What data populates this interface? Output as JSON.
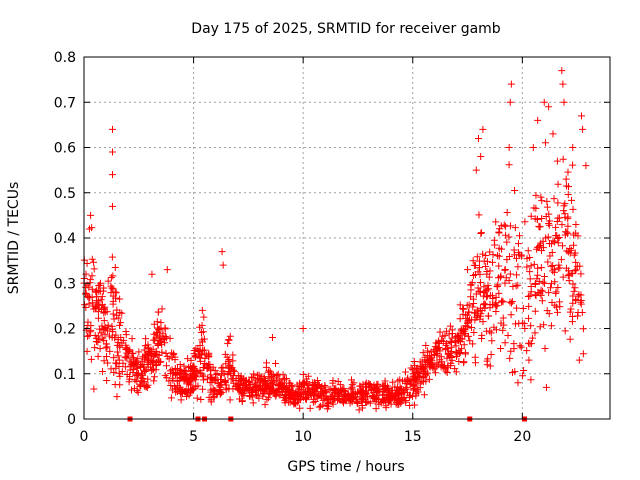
{
  "chart_data": {
    "type": "scatter",
    "title": "Day 175 of 2025, SRMTID for receiver gamb",
    "xlabel": "GPS time / hours",
    "ylabel": "SRMTID / TECUs",
    "xlim": [
      0,
      24
    ],
    "ylim": [
      0,
      0.8
    ],
    "x_ticks": [
      0,
      5,
      10,
      15,
      20
    ],
    "x_tick_labels": [
      "0",
      "5",
      "10",
      "15",
      "20"
    ],
    "y_ticks": [
      0,
      0.1,
      0.2,
      0.3,
      0.4,
      0.5,
      0.6,
      0.7,
      0.8
    ],
    "y_tick_labels": [
      "0",
      "0.1",
      "0.2",
      "0.3",
      "0.4",
      "0.5",
      "0.6",
      "0.7",
      "0.8"
    ],
    "grid": true,
    "marker": "plus",
    "series_color": "#ff0000",
    "envelope": {
      "note": "approximate center (median) and spread of the dense point cloud vs GPS hour",
      "hours": [
        0,
        0.5,
        1.0,
        1.3,
        1.7,
        2.1,
        2.6,
        3.2,
        3.6,
        4.0,
        4.6,
        5.0,
        5.4,
        5.8,
        6.2,
        6.6,
        7.0,
        7.8,
        8.5,
        9.0,
        9.6,
        10.0,
        10.5,
        11.0,
        11.8,
        12.5,
        13.2,
        14.0,
        14.5,
        15.0,
        15.5,
        16.0,
        16.5,
        17.0,
        17.5,
        18.0,
        18.5,
        19.0,
        19.5,
        20.0,
        20.5,
        21.0,
        21.5,
        22.0,
        22.5,
        22.8
      ],
      "center": [
        0.27,
        0.25,
        0.18,
        0.22,
        0.17,
        0.12,
        0.1,
        0.14,
        0.2,
        0.1,
        0.08,
        0.1,
        0.15,
        0.08,
        0.07,
        0.12,
        0.07,
        0.07,
        0.08,
        0.07,
        0.05,
        0.07,
        0.06,
        0.05,
        0.05,
        0.05,
        0.06,
        0.05,
        0.06,
        0.08,
        0.11,
        0.13,
        0.15,
        0.16,
        0.22,
        0.3,
        0.25,
        0.32,
        0.3,
        0.26,
        0.35,
        0.35,
        0.33,
        0.4,
        0.34,
        0.2
      ],
      "spread": [
        0.08,
        0.1,
        0.06,
        0.12,
        0.05,
        0.04,
        0.04,
        0.05,
        0.07,
        0.04,
        0.03,
        0.04,
        0.06,
        0.03,
        0.02,
        0.05,
        0.02,
        0.02,
        0.03,
        0.02,
        0.02,
        0.03,
        0.02,
        0.02,
        0.02,
        0.02,
        0.02,
        0.02,
        0.02,
        0.03,
        0.03,
        0.03,
        0.04,
        0.04,
        0.06,
        0.12,
        0.1,
        0.13,
        0.13,
        0.12,
        0.14,
        0.15,
        0.13,
        0.14,
        0.13,
        0.06
      ],
      "point_count": 1800
    },
    "spikes": [
      {
        "x": 0.3,
        "y": 0.45
      },
      {
        "x": 0.25,
        "y": 0.42
      },
      {
        "x": 1.3,
        "y": 0.64
      },
      {
        "x": 1.3,
        "y": 0.59
      },
      {
        "x": 1.3,
        "y": 0.54
      },
      {
        "x": 1.3,
        "y": 0.47
      },
      {
        "x": 3.1,
        "y": 0.32
      },
      {
        "x": 3.8,
        "y": 0.33
      },
      {
        "x": 5.4,
        "y": 0.24
      },
      {
        "x": 6.3,
        "y": 0.37
      },
      {
        "x": 6.35,
        "y": 0.34
      },
      {
        "x": 8.6,
        "y": 0.18
      },
      {
        "x": 10.0,
        "y": 0.2
      },
      {
        "x": 17.9,
        "y": 0.55
      },
      {
        "x": 18.0,
        "y": 0.62
      },
      {
        "x": 18.2,
        "y": 0.64
      },
      {
        "x": 18.1,
        "y": 0.58
      },
      {
        "x": 19.5,
        "y": 0.74
      },
      {
        "x": 19.45,
        "y": 0.7
      },
      {
        "x": 19.4,
        "y": 0.6
      },
      {
        "x": 20.5,
        "y": 0.6
      },
      {
        "x": 20.7,
        "y": 0.66
      },
      {
        "x": 21.0,
        "y": 0.7
      },
      {
        "x": 21.2,
        "y": 0.69
      },
      {
        "x": 21.4,
        "y": 0.63
      },
      {
        "x": 21.6,
        "y": 0.57
      },
      {
        "x": 21.8,
        "y": 0.77
      },
      {
        "x": 21.85,
        "y": 0.74
      },
      {
        "x": 21.9,
        "y": 0.7
      },
      {
        "x": 22.0,
        "y": 0.53
      },
      {
        "x": 22.3,
        "y": 0.6
      },
      {
        "x": 22.7,
        "y": 0.67
      },
      {
        "x": 22.75,
        "y": 0.64
      },
      {
        "x": 22.9,
        "y": 0.56
      },
      {
        "x": 19.8,
        "y": 0.08
      },
      {
        "x": 20.3,
        "y": 0.13
      },
      {
        "x": 21.1,
        "y": 0.07
      },
      {
        "x": 22.6,
        "y": 0.13
      },
      {
        "x": 18.4,
        "y": 0.12
      },
      {
        "x": 17.5,
        "y": 0.33
      }
    ],
    "zero_values": [
      {
        "x": 2.1,
        "y": 0
      },
      {
        "x": 5.2,
        "y": 0
      },
      {
        "x": 5.5,
        "y": 0
      },
      {
        "x": 6.7,
        "y": 0
      },
      {
        "x": 17.6,
        "y": 0
      },
      {
        "x": 20.1,
        "y": 0
      }
    ]
  }
}
